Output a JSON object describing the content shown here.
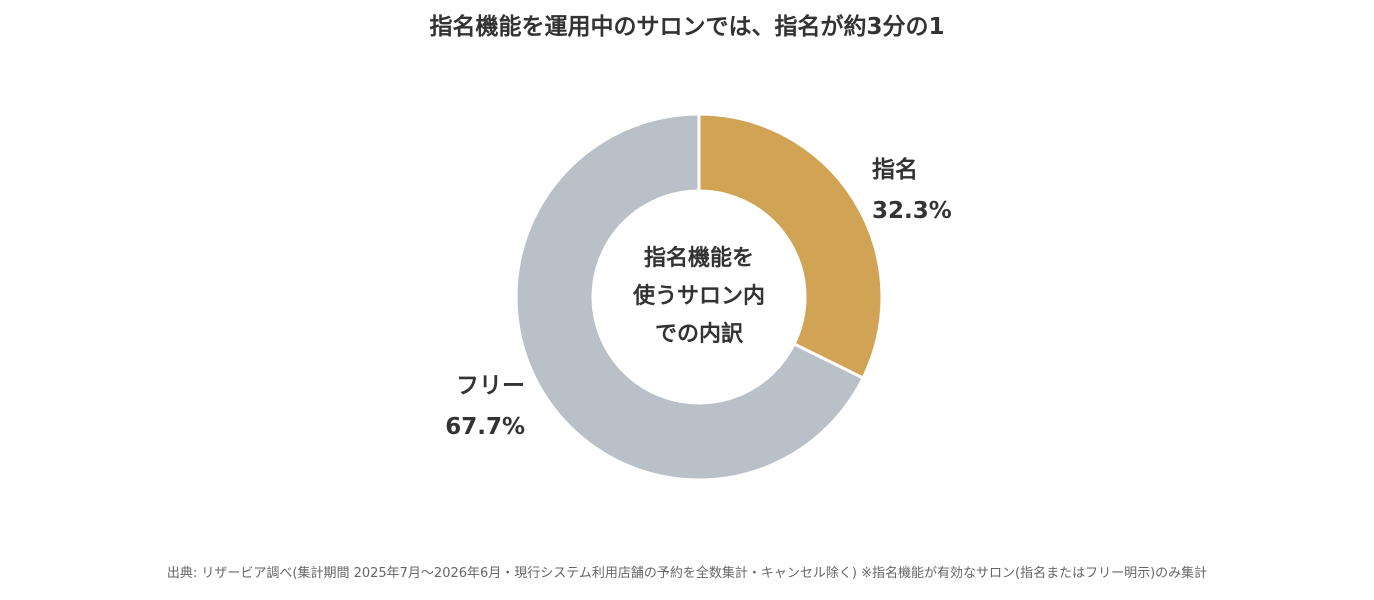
{
  "chart_data": {
    "type": "pie",
    "title": "指名機能を運用中のサロンでは、指名が約3分の1",
    "center_label": [
      "指名機能を",
      "使うサロン内",
      "での内訳"
    ],
    "slices": [
      {
        "label": "指名",
        "value": 32.3,
        "value_label": "32.3%",
        "color": "#D1A354"
      },
      {
        "label": "フリー",
        "value": 67.7,
        "value_label": "67.7%",
        "color": "#BAC0C8"
      }
    ],
    "hole": "donut",
    "legend": "none"
  },
  "footnote": "出典: リザービア調べ(集計期間 2025年7月〜2026年6月・現行システム利用店舗の予約を全数集計・キャンセル除く) ※指名機能が有効なサロン(指名またはフリー明示)のみ集計"
}
